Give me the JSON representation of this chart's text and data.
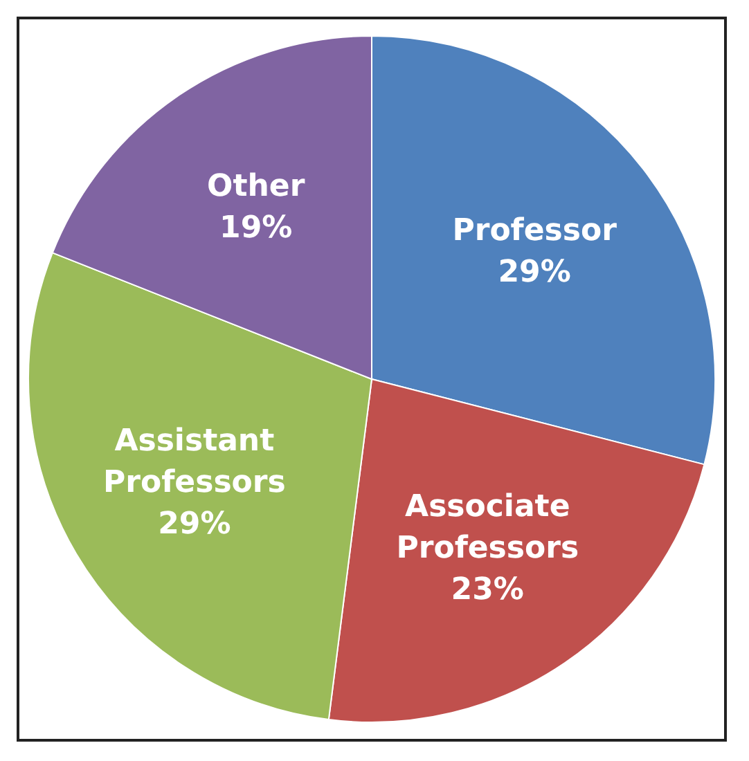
{
  "chart_data": {
    "type": "pie",
    "categories": [
      "Professor",
      "Associate Professors",
      "Assistant Professors",
      "Other"
    ],
    "values": [
      29,
      23,
      29,
      19
    ],
    "value_labels": [
      "29%",
      "23%",
      "29%",
      "19%"
    ],
    "colors": [
      "#4f81bd",
      "#c0504d",
      "#9bbb59",
      "#8064a2"
    ],
    "legend": false
  }
}
